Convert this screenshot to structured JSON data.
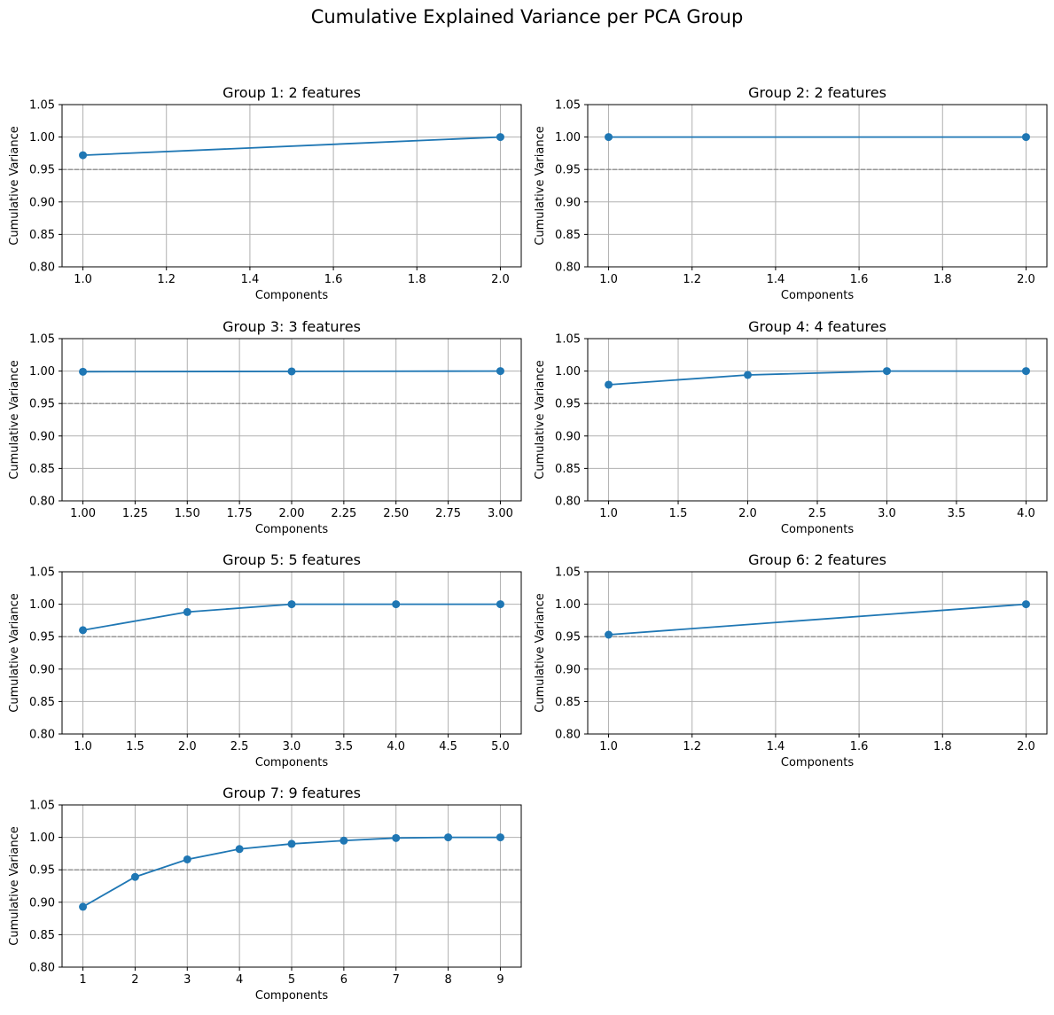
{
  "figure": {
    "title": "Cumulative Explained Variance per PCA Group"
  },
  "style": {
    "line_color": "#1f77b4",
    "grid_color": "#b0b0b0",
    "threshold_color": "#808080",
    "axes_color": "#000000"
  },
  "chart_data": [
    {
      "type": "line",
      "title": "Group 1: 2 features",
      "xlabel": "Components",
      "ylabel": "Cumulative Variance",
      "x": [
        1,
        2
      ],
      "y": [
        0.972,
        1.0
      ],
      "xlim": [
        0.95,
        2.05
      ],
      "ylim": [
        0.8,
        1.05
      ],
      "xticks": [
        1.0,
        1.2,
        1.4,
        1.6,
        1.8,
        2.0
      ],
      "xtick_labels": [
        "1.0",
        "1.2",
        "1.4",
        "1.6",
        "1.8",
        "2.0"
      ],
      "yticks": [
        0.8,
        0.85,
        0.9,
        0.95,
        1.0,
        1.05
      ],
      "ytick_labels": [
        "0.80",
        "0.85",
        "0.90",
        "0.95",
        "1.00",
        "1.05"
      ],
      "threshold": 0.95,
      "grid": true
    },
    {
      "type": "line",
      "title": "Group 2: 2 features",
      "xlabel": "Components",
      "ylabel": "Cumulative Variance",
      "x": [
        1,
        2
      ],
      "y": [
        1.0,
        1.0
      ],
      "xlim": [
        0.95,
        2.05
      ],
      "ylim": [
        0.8,
        1.05
      ],
      "xticks": [
        1.0,
        1.2,
        1.4,
        1.6,
        1.8,
        2.0
      ],
      "xtick_labels": [
        "1.0",
        "1.2",
        "1.4",
        "1.6",
        "1.8",
        "2.0"
      ],
      "yticks": [
        0.8,
        0.85,
        0.9,
        0.95,
        1.0,
        1.05
      ],
      "ytick_labels": [
        "0.80",
        "0.85",
        "0.90",
        "0.95",
        "1.00",
        "1.05"
      ],
      "threshold": 0.95,
      "grid": true
    },
    {
      "type": "line",
      "title": "Group 3: 3 features",
      "xlabel": "Components",
      "ylabel": "Cumulative Variance",
      "x": [
        1,
        2,
        3
      ],
      "y": [
        0.999,
        0.9995,
        1.0
      ],
      "xlim": [
        0.9,
        3.1
      ],
      "ylim": [
        0.8,
        1.05
      ],
      "xticks": [
        1.0,
        1.25,
        1.5,
        1.75,
        2.0,
        2.25,
        2.5,
        2.75,
        3.0
      ],
      "xtick_labels": [
        "1.00",
        "1.25",
        "1.50",
        "1.75",
        "2.00",
        "2.25",
        "2.50",
        "2.75",
        "3.00"
      ],
      "yticks": [
        0.8,
        0.85,
        0.9,
        0.95,
        1.0,
        1.05
      ],
      "ytick_labels": [
        "0.80",
        "0.85",
        "0.90",
        "0.95",
        "1.00",
        "1.05"
      ],
      "threshold": 0.95,
      "grid": true
    },
    {
      "type": "line",
      "title": "Group 4: 4 features",
      "xlabel": "Components",
      "ylabel": "Cumulative Variance",
      "x": [
        1,
        2,
        3,
        4
      ],
      "y": [
        0.979,
        0.994,
        1.0,
        1.0
      ],
      "xlim": [
        0.85,
        4.15
      ],
      "ylim": [
        0.8,
        1.05
      ],
      "xticks": [
        1.0,
        1.5,
        2.0,
        2.5,
        3.0,
        3.5,
        4.0
      ],
      "xtick_labels": [
        "1.0",
        "1.5",
        "2.0",
        "2.5",
        "3.0",
        "3.5",
        "4.0"
      ],
      "yticks": [
        0.8,
        0.85,
        0.9,
        0.95,
        1.0,
        1.05
      ],
      "ytick_labels": [
        "0.80",
        "0.85",
        "0.90",
        "0.95",
        "1.00",
        "1.05"
      ],
      "threshold": 0.95,
      "grid": true
    },
    {
      "type": "line",
      "title": "Group 5: 5 features",
      "xlabel": "Components",
      "ylabel": "Cumulative Variance",
      "x": [
        1,
        2,
        3,
        4,
        5
      ],
      "y": [
        0.96,
        0.988,
        1.0,
        1.0,
        1.0
      ],
      "xlim": [
        0.8,
        5.2
      ],
      "ylim": [
        0.8,
        1.05
      ],
      "xticks": [
        1.0,
        1.5,
        2.0,
        2.5,
        3.0,
        3.5,
        4.0,
        4.5,
        5.0
      ],
      "xtick_labels": [
        "1.0",
        "1.5",
        "2.0",
        "2.5",
        "3.0",
        "3.5",
        "4.0",
        "4.5",
        "5.0"
      ],
      "yticks": [
        0.8,
        0.85,
        0.9,
        0.95,
        1.0,
        1.05
      ],
      "ytick_labels": [
        "0.80",
        "0.85",
        "0.90",
        "0.95",
        "1.00",
        "1.05"
      ],
      "threshold": 0.95,
      "grid": true
    },
    {
      "type": "line",
      "title": "Group 6: 2 features",
      "xlabel": "Components",
      "ylabel": "Cumulative Variance",
      "x": [
        1,
        2
      ],
      "y": [
        0.953,
        1.0
      ],
      "xlim": [
        0.95,
        2.05
      ],
      "ylim": [
        0.8,
        1.05
      ],
      "xticks": [
        1.0,
        1.2,
        1.4,
        1.6,
        1.8,
        2.0
      ],
      "xtick_labels": [
        "1.0",
        "1.2",
        "1.4",
        "1.6",
        "1.8",
        "2.0"
      ],
      "yticks": [
        0.8,
        0.85,
        0.9,
        0.95,
        1.0,
        1.05
      ],
      "ytick_labels": [
        "0.80",
        "0.85",
        "0.90",
        "0.95",
        "1.00",
        "1.05"
      ],
      "threshold": 0.95,
      "grid": true
    },
    {
      "type": "line",
      "title": "Group 7: 9 features",
      "xlabel": "Components",
      "ylabel": "Cumulative Variance",
      "x": [
        1,
        2,
        3,
        4,
        5,
        6,
        7,
        8,
        9
      ],
      "y": [
        0.893,
        0.939,
        0.966,
        0.982,
        0.99,
        0.995,
        0.999,
        1.0,
        1.0
      ],
      "xlim": [
        0.6,
        9.4
      ],
      "ylim": [
        0.8,
        1.05
      ],
      "xticks": [
        1,
        2,
        3,
        4,
        5,
        6,
        7,
        8,
        9
      ],
      "xtick_labels": [
        "1",
        "2",
        "3",
        "4",
        "5",
        "6",
        "7",
        "8",
        "9"
      ],
      "yticks": [
        0.8,
        0.85,
        0.9,
        0.95,
        1.0,
        1.05
      ],
      "ytick_labels": [
        "0.80",
        "0.85",
        "0.90",
        "0.95",
        "1.00",
        "1.05"
      ],
      "threshold": 0.95,
      "grid": true
    }
  ]
}
